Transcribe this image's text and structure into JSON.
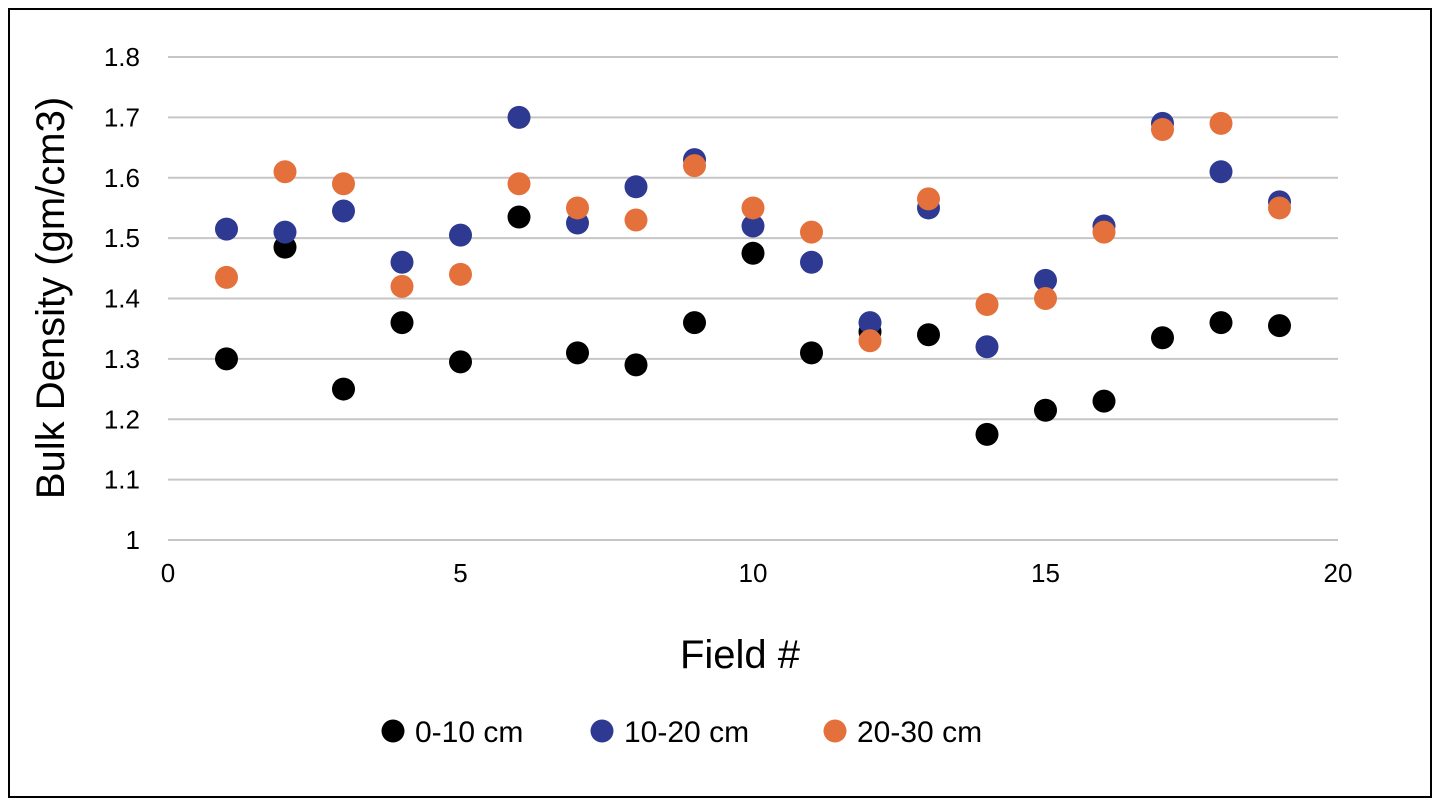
{
  "chart_data": {
    "type": "scatter",
    "title": "",
    "xlabel": "Field #",
    "ylabel": "Bulk Density (gm/cm3)",
    "xlim": [
      0,
      20
    ],
    "ylim": [
      1,
      1.8
    ],
    "xticks": [
      0,
      5,
      10,
      15,
      20
    ],
    "yticks": [
      1,
      1.1,
      1.2,
      1.3,
      1.4,
      1.5,
      1.6,
      1.7,
      1.8
    ],
    "ytick_labels": [
      "1",
      "1.1",
      "1.2",
      "1.3",
      "1.4",
      "1.5",
      "1.6",
      "1.7",
      "1.8"
    ],
    "grid": "horizontal",
    "legend_position": "bottom",
    "x": [
      1,
      2,
      3,
      4,
      5,
      6,
      7,
      8,
      9,
      10,
      11,
      12,
      13,
      14,
      15,
      16,
      17,
      18,
      19
    ],
    "series": [
      {
        "name": "0-10 cm",
        "color": "#000000",
        "values": [
          1.3,
          1.485,
          1.25,
          1.36,
          1.295,
          1.535,
          1.31,
          1.29,
          1.36,
          1.475,
          1.31,
          1.345,
          1.34,
          1.175,
          1.215,
          1.23,
          1.335,
          1.36,
          1.355
        ]
      },
      {
        "name": "10-20 cm",
        "color": "#2e3a92",
        "values": [
          1.515,
          1.51,
          1.545,
          1.46,
          1.505,
          1.7,
          1.525,
          1.585,
          1.63,
          1.52,
          1.46,
          1.36,
          1.55,
          1.32,
          1.43,
          1.52,
          1.69,
          1.61,
          1.56
        ]
      },
      {
        "name": "20-30 cm",
        "color": "#e4703b",
        "values": [
          1.435,
          1.61,
          1.59,
          1.42,
          1.44,
          1.59,
          1.55,
          1.53,
          1.62,
          1.55,
          1.51,
          1.33,
          1.565,
          1.39,
          1.4,
          1.51,
          1.68,
          1.69,
          1.55
        ]
      }
    ]
  }
}
